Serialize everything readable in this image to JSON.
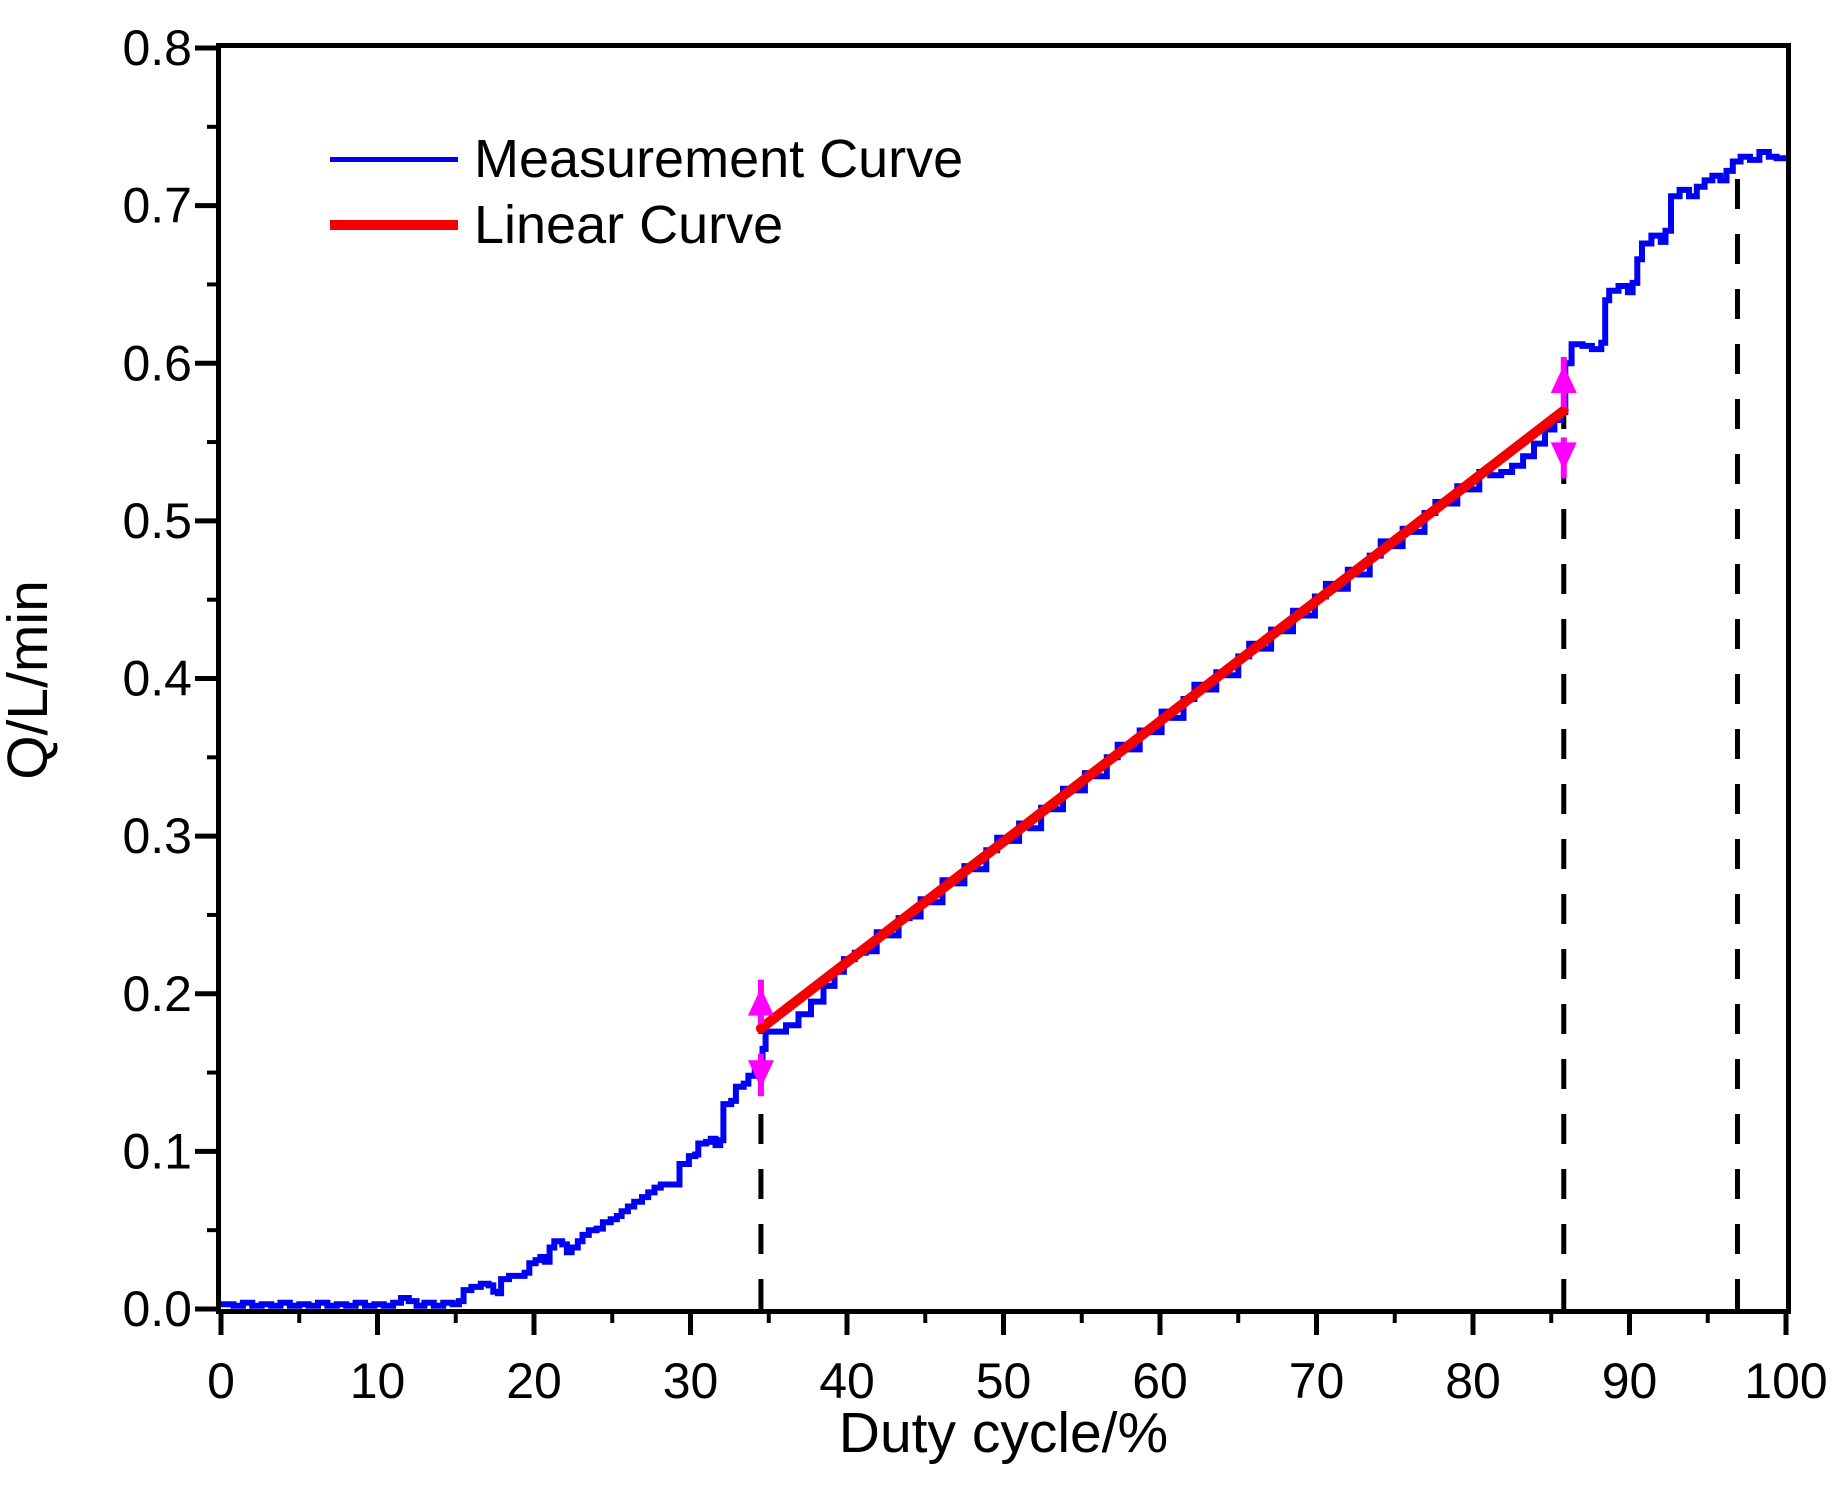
{
  "figure": {
    "background": "#ffffff",
    "legend": {
      "items": [
        {
          "label": "Measurement Curve",
          "color": "#0202f2"
        },
        {
          "label": "Linear Curve",
          "color": "#f40000"
        }
      ]
    }
  },
  "chart_data": {
    "type": "line",
    "title": "",
    "xlabel": "Duty cycle/%",
    "ylabel": "Q/L/min",
    "xlim": [
      0,
      100
    ],
    "ylim": [
      0,
      0.8
    ],
    "grid": false,
    "legend_position": "upper-left-inside",
    "x_major_ticks": [
      0,
      10,
      20,
      30,
      40,
      50,
      60,
      70,
      80,
      90,
      100
    ],
    "x_minor_ticks": [
      5,
      15,
      25,
      35,
      45,
      55,
      65,
      75,
      85,
      95
    ],
    "x_tick_labels": [
      "0",
      "10",
      "20",
      "30",
      "40",
      "50",
      "60",
      "70",
      "80",
      "90",
      "100"
    ],
    "y_major_ticks": [
      0,
      0.1,
      0.2,
      0.3,
      0.4,
      0.5,
      0.6,
      0.7,
      0.8
    ],
    "y_minor_ticks": [
      0.05,
      0.15,
      0.25,
      0.35,
      0.45,
      0.55,
      0.65,
      0.75
    ],
    "y_tick_labels": [
      "0.0",
      "0.1",
      "0.2",
      "0.3",
      "0.4",
      "0.5",
      "0.6",
      "0.7",
      "0.8"
    ],
    "series": [
      {
        "name": "Measurement Curve",
        "color": "#0202f2",
        "width": 6,
        "style": "steps",
        "points": [
          [
            0,
            0.003
          ],
          [
            0.8,
            0.002
          ],
          [
            1.4,
            0.004
          ],
          [
            2.0,
            0.002
          ],
          [
            2.6,
            0.003
          ],
          [
            3.2,
            0.002
          ],
          [
            3.8,
            0.004
          ],
          [
            4.4,
            0.002
          ],
          [
            5.0,
            0.003
          ],
          [
            5.6,
            0.002
          ],
          [
            6.2,
            0.004
          ],
          [
            6.8,
            0.002
          ],
          [
            7.4,
            0.003
          ],
          [
            8.0,
            0.002
          ],
          [
            8.6,
            0.004
          ],
          [
            9.2,
            0.002
          ],
          [
            9.8,
            0.003
          ],
          [
            10.4,
            0.002
          ],
          [
            11.0,
            0.004
          ],
          [
            11.5,
            0.007
          ],
          [
            12.0,
            0.005
          ],
          [
            12.5,
            0.002
          ],
          [
            13.0,
            0.004
          ],
          [
            13.6,
            0.002
          ],
          [
            14.2,
            0.004
          ],
          [
            14.8,
            0.003
          ],
          [
            15.2,
            0.005
          ],
          [
            15.5,
            0.012
          ],
          [
            16.0,
            0.014
          ],
          [
            16.6,
            0.016
          ],
          [
            17.1,
            0.015
          ],
          [
            17.4,
            0.011
          ],
          [
            17.7,
            0.01
          ],
          [
            17.9,
            0.019
          ],
          [
            18.4,
            0.021
          ],
          [
            19.0,
            0.021
          ],
          [
            19.4,
            0.023
          ],
          [
            19.7,
            0.029
          ],
          [
            20.1,
            0.031
          ],
          [
            20.4,
            0.033
          ],
          [
            20.7,
            0.03
          ],
          [
            21.0,
            0.039
          ],
          [
            21.3,
            0.043
          ],
          [
            21.8,
            0.041
          ],
          [
            22.1,
            0.036
          ],
          [
            22.4,
            0.039
          ],
          [
            22.8,
            0.043
          ],
          [
            23.1,
            0.047
          ],
          [
            23.5,
            0.05
          ],
          [
            24.0,
            0.051
          ],
          [
            24.4,
            0.055
          ],
          [
            24.9,
            0.057
          ],
          [
            25.3,
            0.059
          ],
          [
            25.6,
            0.062
          ],
          [
            26.0,
            0.065
          ],
          [
            26.4,
            0.068
          ],
          [
            26.9,
            0.071
          ],
          [
            27.3,
            0.074
          ],
          [
            27.7,
            0.077
          ],
          [
            28.1,
            0.079
          ],
          [
            28.9,
            0.079
          ],
          [
            29.3,
            0.092
          ],
          [
            29.9,
            0.097
          ],
          [
            30.3,
            0.098
          ],
          [
            30.5,
            0.105
          ],
          [
            31.0,
            0.106
          ],
          [
            31.3,
            0.108
          ],
          [
            31.6,
            0.104
          ],
          [
            31.9,
            0.107
          ],
          [
            32.1,
            0.13
          ],
          [
            32.6,
            0.132
          ],
          [
            32.9,
            0.141
          ],
          [
            33.4,
            0.143
          ],
          [
            33.7,
            0.148
          ],
          [
            34.1,
            0.151
          ],
          [
            34.4,
            0.154
          ],
          [
            34.6,
            0.165
          ],
          [
            34.8,
            0.176
          ],
          [
            35.3,
            0.176
          ],
          [
            36.1,
            0.18
          ],
          [
            36.9,
            0.187
          ],
          [
            37.7,
            0.195
          ],
          [
            38.5,
            0.205
          ],
          [
            39.2,
            0.214
          ],
          [
            39.8,
            0.222
          ],
          [
            40.5,
            0.226
          ],
          [
            41.2,
            0.227
          ],
          [
            41.9,
            0.239
          ],
          [
            42.6,
            0.237
          ],
          [
            43.3,
            0.248
          ],
          [
            44.0,
            0.249
          ],
          [
            44.7,
            0.26
          ],
          [
            45.4,
            0.258
          ],
          [
            46.1,
            0.272
          ],
          [
            46.8,
            0.27
          ],
          [
            47.5,
            0.281
          ],
          [
            48.2,
            0.279
          ],
          [
            48.9,
            0.291
          ],
          [
            49.6,
            0.299
          ],
          [
            50.3,
            0.297
          ],
          [
            51.0,
            0.308
          ],
          [
            51.7,
            0.305
          ],
          [
            52.4,
            0.318
          ],
          [
            53.1,
            0.317
          ],
          [
            53.8,
            0.33
          ],
          [
            54.5,
            0.329
          ],
          [
            55.2,
            0.34
          ],
          [
            55.9,
            0.338
          ],
          [
            56.6,
            0.35
          ],
          [
            57.3,
            0.358
          ],
          [
            58.0,
            0.355
          ],
          [
            58.7,
            0.367
          ],
          [
            59.4,
            0.366
          ],
          [
            60.1,
            0.379
          ],
          [
            60.8,
            0.375
          ],
          [
            61.5,
            0.387
          ],
          [
            62.2,
            0.396
          ],
          [
            62.9,
            0.393
          ],
          [
            63.6,
            0.404
          ],
          [
            64.3,
            0.402
          ],
          [
            65.0,
            0.414
          ],
          [
            65.7,
            0.422
          ],
          [
            66.4,
            0.419
          ],
          [
            67.1,
            0.431
          ],
          [
            67.8,
            0.43
          ],
          [
            68.5,
            0.443
          ],
          [
            69.2,
            0.44
          ],
          [
            69.9,
            0.452
          ],
          [
            70.6,
            0.46
          ],
          [
            71.3,
            0.457
          ],
          [
            72.0,
            0.469
          ],
          [
            72.7,
            0.466
          ],
          [
            73.4,
            0.478
          ],
          [
            74.1,
            0.487
          ],
          [
            74.8,
            0.484
          ],
          [
            75.5,
            0.495
          ],
          [
            76.2,
            0.493
          ],
          [
            76.9,
            0.505
          ],
          [
            77.6,
            0.512
          ],
          [
            78.3,
            0.511
          ],
          [
            79.0,
            0.522
          ],
          [
            79.7,
            0.52
          ],
          [
            80.4,
            0.531
          ],
          [
            81.1,
            0.529
          ],
          [
            81.8,
            0.531
          ],
          [
            82.5,
            0.535
          ],
          [
            83.2,
            0.541
          ],
          [
            83.9,
            0.549
          ],
          [
            84.6,
            0.558
          ],
          [
            85.2,
            0.564
          ],
          [
            85.6,
            0.569
          ],
          [
            85.9,
            0.6
          ],
          [
            86.3,
            0.612
          ],
          [
            87.0,
            0.611
          ],
          [
            87.6,
            0.609
          ],
          [
            88.2,
            0.613
          ],
          [
            88.45,
            0.64
          ],
          [
            88.7,
            0.646
          ],
          [
            89.3,
            0.649
          ],
          [
            89.9,
            0.645
          ],
          [
            90.2,
            0.651
          ],
          [
            90.5,
            0.666
          ],
          [
            90.8,
            0.676
          ],
          [
            91.4,
            0.681
          ],
          [
            92.0,
            0.677
          ],
          [
            92.3,
            0.684
          ],
          [
            92.65,
            0.706
          ],
          [
            93.2,
            0.71
          ],
          [
            93.8,
            0.706
          ],
          [
            94.3,
            0.712
          ],
          [
            94.8,
            0.716
          ],
          [
            95.3,
            0.719
          ],
          [
            95.8,
            0.716
          ],
          [
            96.2,
            0.722
          ],
          [
            96.6,
            0.728
          ],
          [
            97.1,
            0.731
          ],
          [
            97.7,
            0.729
          ],
          [
            98.3,
            0.734
          ],
          [
            98.9,
            0.731
          ],
          [
            99.4,
            0.73
          ],
          [
            100,
            0.731
          ]
        ]
      },
      {
        "name": "Linear Curve",
        "color": "#f40000",
        "width": 10,
        "style": "straight",
        "points": [
          [
            34.5,
            0.178
          ],
          [
            85.8,
            0.57
          ]
        ]
      }
    ],
    "annotations": {
      "dashed_vlines": [
        {
          "x": 34.5,
          "q_top": 0.176
        },
        {
          "x": 85.8,
          "q_top": 0.57
        },
        {
          "x": 96.9,
          "q_top": 0.727
        }
      ],
      "arrows": [
        {
          "x": 34.5,
          "base": 0.181,
          "tip": 0.209,
          "color": "#ff00ff"
        },
        {
          "x": 34.5,
          "base": 0.162,
          "tip": 0.135,
          "color": "#ff00ff"
        },
        {
          "x": 85.8,
          "base": 0.572,
          "tip": 0.604,
          "color": "#ff00ff"
        },
        {
          "x": 85.8,
          "base": 0.553,
          "tip": 0.527,
          "color": "#ff00ff"
        }
      ]
    }
  }
}
